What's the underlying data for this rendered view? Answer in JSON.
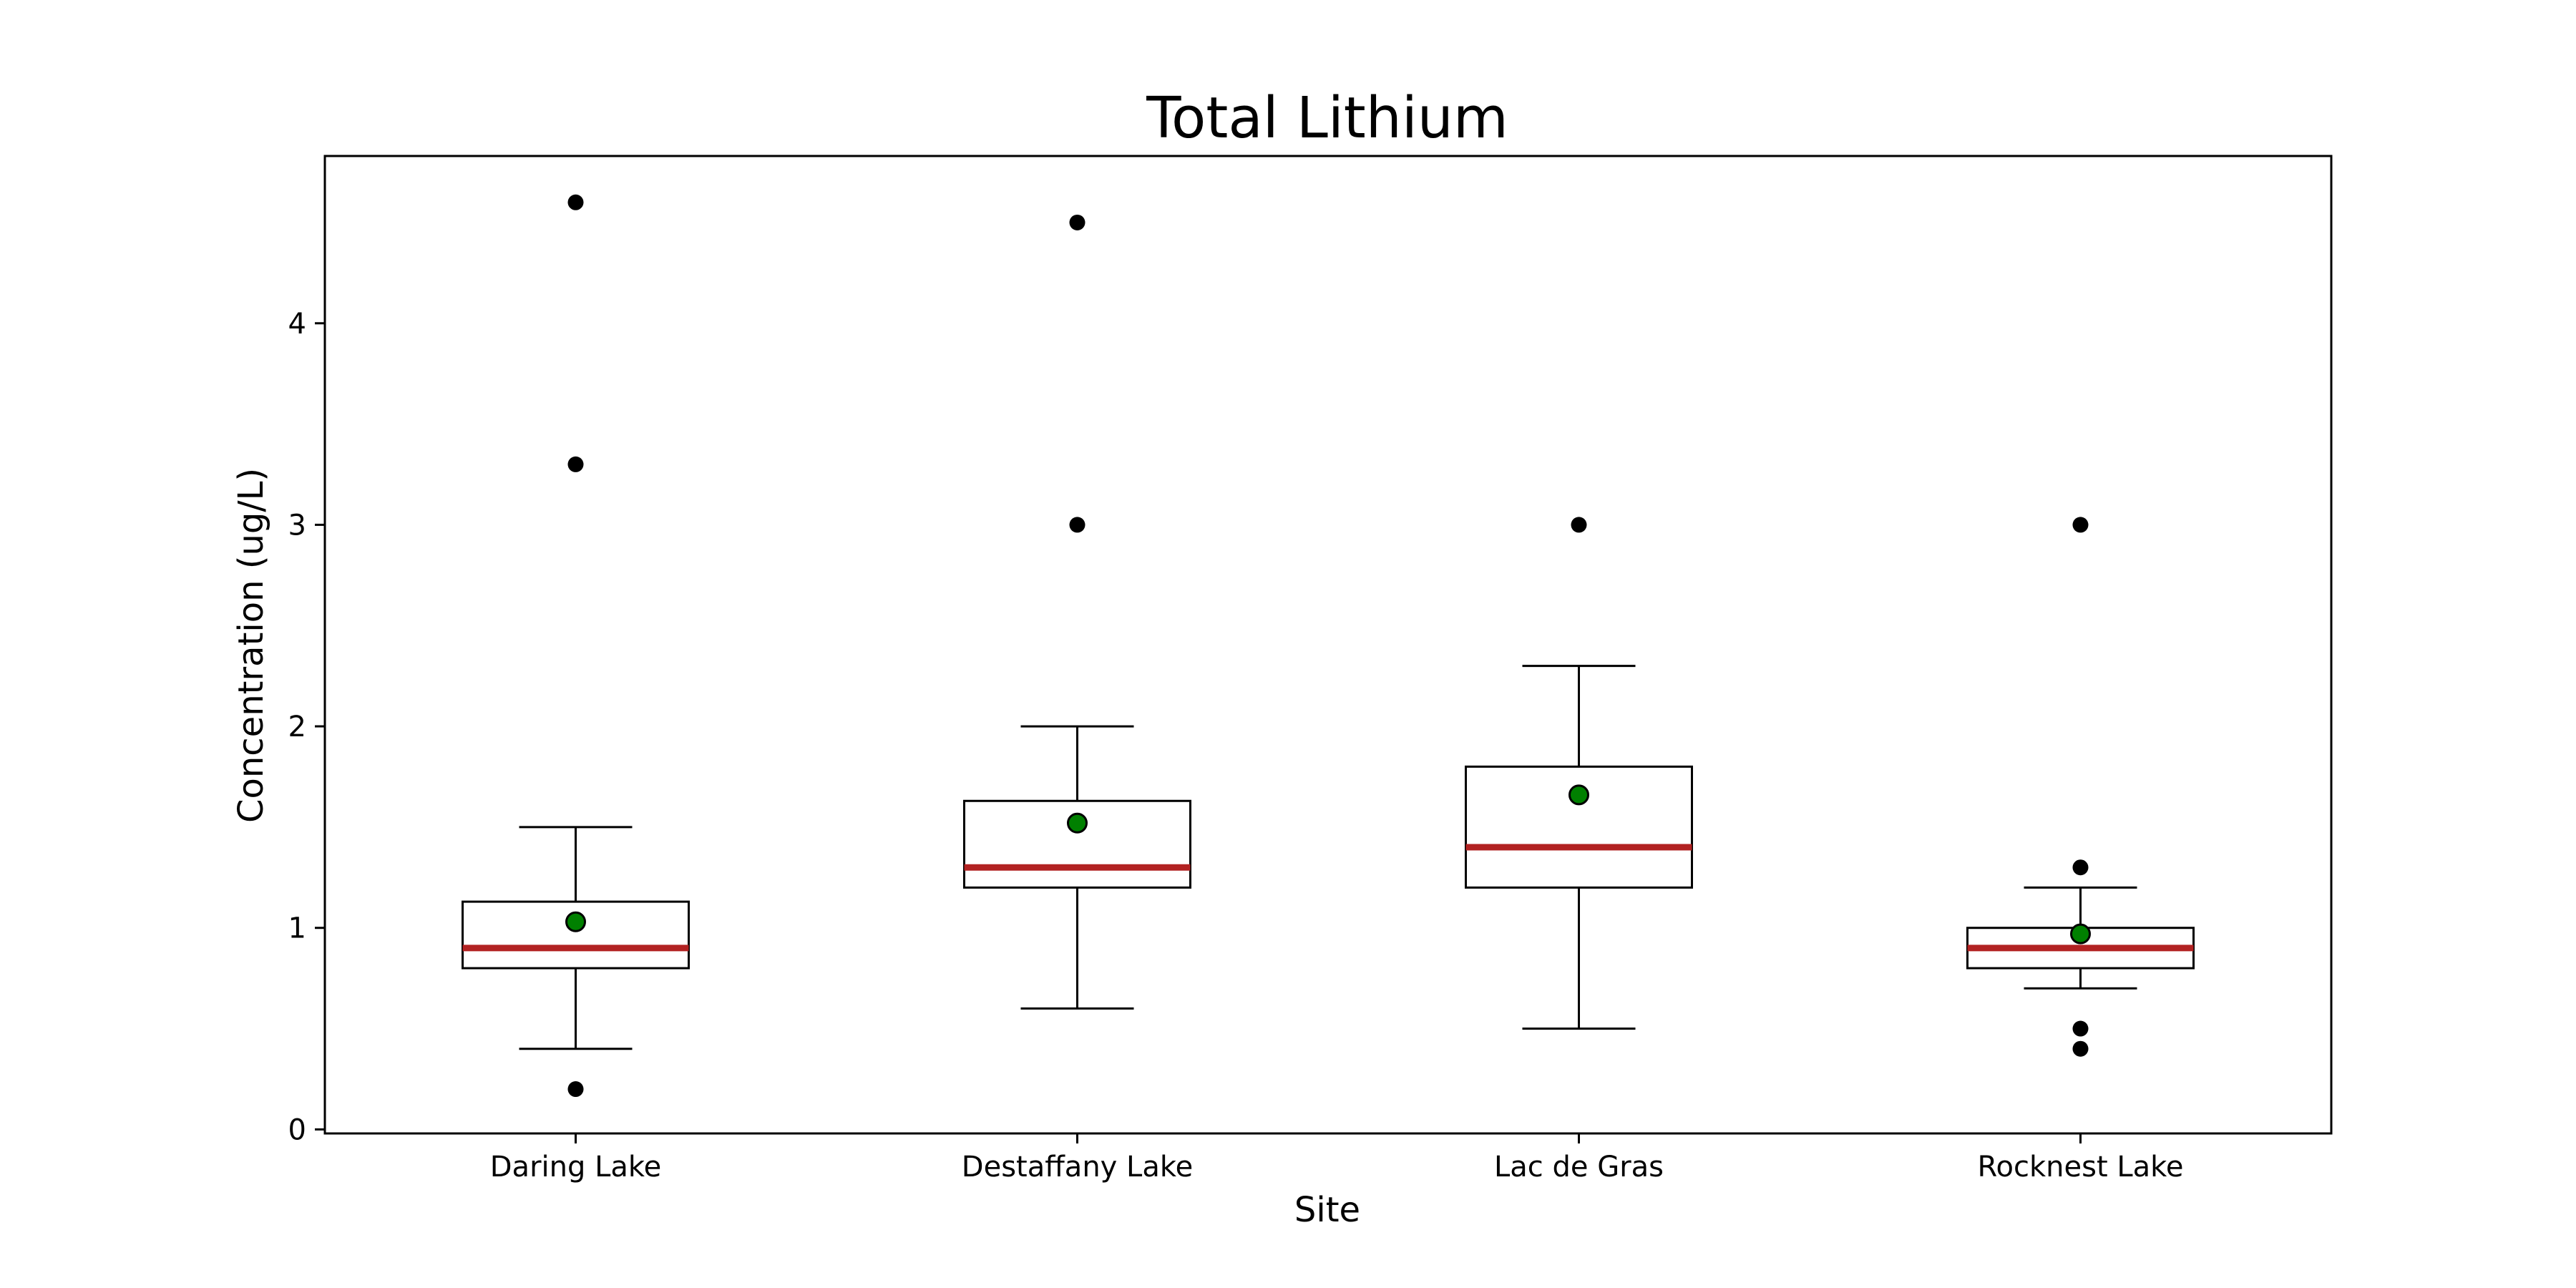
{
  "chart_data": {
    "type": "boxplot",
    "title": "Total Lithium",
    "xlabel": "Site",
    "ylabel": "Concentration (ug/L)",
    "ylim": [
      -0.02,
      4.83
    ],
    "yticks": [
      0,
      1,
      2,
      3,
      4
    ],
    "ytick_labels": [
      "0",
      "1",
      "2",
      "3",
      "4"
    ],
    "grid": false,
    "categories": [
      "Daring Lake",
      "Destaffany Lake",
      "Lac de Gras",
      "Rocknest Lake"
    ],
    "boxes": [
      {
        "q1": 0.8,
        "median": 0.9,
        "q3": 1.13,
        "whisker_low": 0.4,
        "whisker_high": 1.5,
        "mean": 1.03,
        "outliers": [
          0.2,
          3.3,
          4.6
        ]
      },
      {
        "q1": 1.2,
        "median": 1.3,
        "q3": 1.63,
        "whisker_low": 0.6,
        "whisker_high": 2.0,
        "mean": 1.52,
        "outliers": [
          3.0,
          4.5
        ]
      },
      {
        "q1": 1.2,
        "median": 1.4,
        "q3": 1.8,
        "whisker_low": 0.5,
        "whisker_high": 2.3,
        "mean": 1.66,
        "outliers": [
          3.0
        ]
      },
      {
        "q1": 0.8,
        "median": 0.9,
        "q3": 1.0,
        "whisker_low": 0.7,
        "whisker_high": 1.2,
        "mean": 0.97,
        "outliers": [
          0.4,
          0.5,
          1.3,
          3.0
        ]
      }
    ],
    "colors": {
      "box_edge": "#000000",
      "median": "#b22222",
      "mean_fill": "#008000",
      "outlier": "#000000"
    }
  }
}
